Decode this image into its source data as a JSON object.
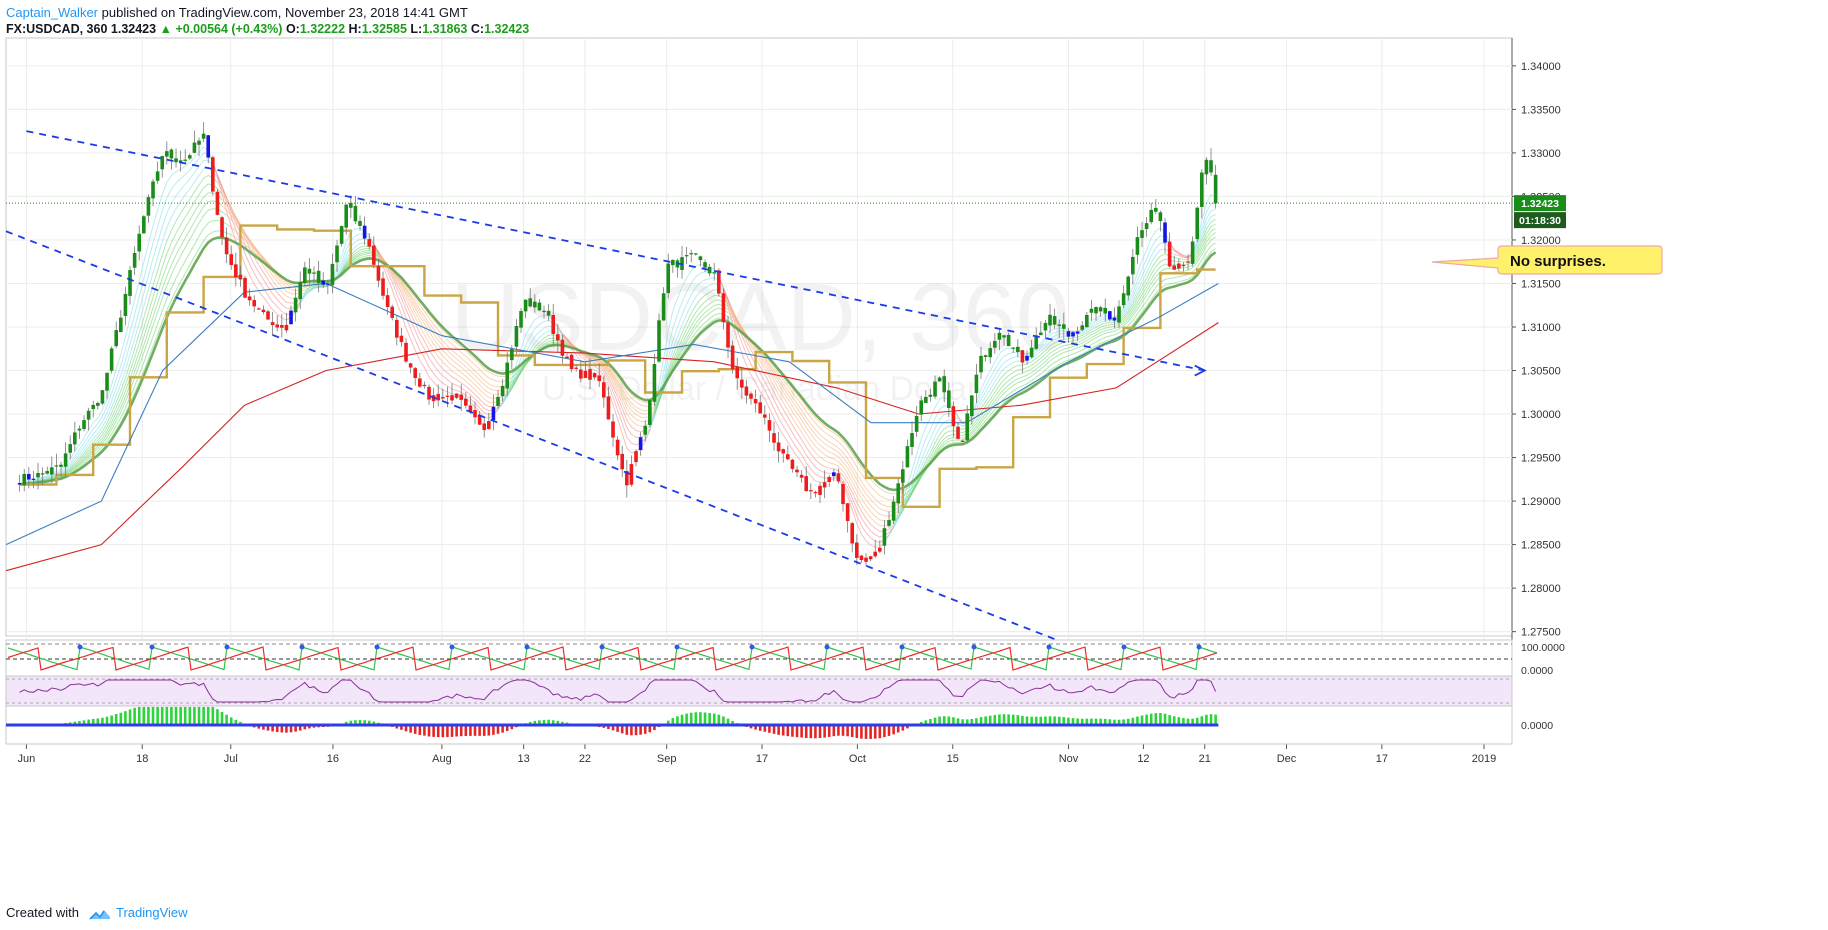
{
  "header": {
    "author": "Captain_Walker",
    "published_text": "published on TradingView.com, November 23, 2018 14:41 GMT",
    "symbol": "FX:USDCAD, 360",
    "last": "1.32423",
    "change": "+0.00564 (+0.43%)",
    "open_label": "O:",
    "open": "1.32222",
    "high_label": "H:",
    "high": "1.32585",
    "low_label": "L:",
    "low": "1.31863",
    "close_label": "C:",
    "close": "1.32423"
  },
  "colors": {
    "bull": "#1a8c1a",
    "bear": "#ee1c1c",
    "neutral": "#1414e6",
    "trendline": "#1a3be6",
    "kijun": "#c9a544",
    "ma_red": "#d62222",
    "ma_blue": "#3a7fc0",
    "callout_bg": "#fff16a",
    "price_badge": "#1a8c1a"
  },
  "chart_data": {
    "type": "candlestick",
    "symbol": "FX:USDCAD",
    "interval": "360",
    "y_ticks": [
      "1.34000",
      "1.33500",
      "1.33000",
      "1.32500",
      "1.32000",
      "1.31500",
      "1.31000",
      "1.30500",
      "1.30000",
      "1.29500",
      "1.29000",
      "1.28500",
      "1.28000",
      "1.27500"
    ],
    "ylim": [
      1.2745,
      1.3432
    ],
    "x_ticks": [
      "Jun",
      "18",
      "Jul",
      "16",
      "Aug",
      "13",
      "22",
      "Sep",
      "17",
      "Oct",
      "15",
      "Nov",
      "12",
      "21",
      "Dec",
      "17",
      "2019"
    ],
    "watermark_symbol": "USDCAD, 360",
    "watermark_desc": "U.S. Dollar / Canadian Dollar",
    "last_price_label": "1.32423",
    "countdown_label": "01:18:30",
    "price_path": [
      [
        "2018-05-31",
        1.2925
      ],
      [
        "2018-06-03",
        1.293
      ],
      [
        "2018-06-06",
        1.294
      ],
      [
        "2018-06-09",
        1.299
      ],
      [
        "2018-06-12",
        1.302
      ],
      [
        "2018-06-15",
        1.312
      ],
      [
        "2018-06-18",
        1.322
      ],
      [
        "2018-06-21",
        1.33
      ],
      [
        "2018-06-24",
        1.329
      ],
      [
        "2018-06-27",
        1.332
      ],
      [
        "2018-06-30",
        1.319
      ],
      [
        "2018-07-03",
        1.314
      ],
      [
        "2018-07-06",
        1.311
      ],
      [
        "2018-07-09",
        1.31
      ],
      [
        "2018-07-12",
        1.317
      ],
      [
        "2018-07-15",
        1.314
      ],
      [
        "2018-07-18",
        1.324
      ],
      [
        "2018-07-21",
        1.32
      ],
      [
        "2018-07-24",
        1.312
      ],
      [
        "2018-07-27",
        1.306
      ],
      [
        "2018-07-30",
        1.302
      ],
      [
        "2018-08-03",
        1.302
      ],
      [
        "2018-08-07",
        1.298
      ],
      [
        "2018-08-10",
        1.304
      ],
      [
        "2018-08-13",
        1.313
      ],
      [
        "2018-08-16",
        1.312
      ],
      [
        "2018-08-20",
        1.305
      ],
      [
        "2018-08-24",
        1.304
      ],
      [
        "2018-08-28",
        1.292
      ],
      [
        "2018-08-31",
        1.299
      ],
      [
        "2018-09-03",
        1.317
      ],
      [
        "2018-09-07",
        1.318
      ],
      [
        "2018-09-10",
        1.316
      ],
      [
        "2018-09-13",
        1.304
      ],
      [
        "2018-09-17",
        1.3
      ],
      [
        "2018-09-20",
        1.295
      ],
      [
        "2018-09-24",
        1.291
      ],
      [
        "2018-09-28",
        1.293
      ],
      [
        "2018-10-01",
        1.283
      ],
      [
        "2018-10-04",
        1.284
      ],
      [
        "2018-10-07",
        1.292
      ],
      [
        "2018-10-10",
        1.301
      ],
      [
        "2018-10-13",
        1.304
      ],
      [
        "2018-10-16",
        1.296
      ],
      [
        "2018-10-19",
        1.306
      ],
      [
        "2018-10-22",
        1.31
      ],
      [
        "2018-10-25",
        1.306
      ],
      [
        "2018-10-29",
        1.311
      ],
      [
        "2018-11-01",
        1.309
      ],
      [
        "2018-11-05",
        1.312
      ],
      [
        "2018-11-08",
        1.311
      ],
      [
        "2018-11-11",
        1.32
      ],
      [
        "2018-11-14",
        1.324
      ],
      [
        "2018-11-16",
        1.317
      ],
      [
        "2018-11-19",
        1.318
      ],
      [
        "2018-11-21",
        1.33
      ],
      [
        "2018-11-23",
        1.3242
      ]
    ],
    "trend_lines": [
      {
        "from": [
          "2018-06-01",
          1.3325
        ],
        "to": [
          "2018-11-21",
          1.305
        ]
      },
      {
        "from": [
          "2018-05-29",
          1.321
        ],
        "to": [
          "2018-11-06",
          1.272
        ]
      }
    ],
    "ma_red": [
      [
        "2018-05-29",
        1.282
      ],
      [
        "2018-06-12",
        1.285
      ],
      [
        "2018-06-24",
        1.294
      ],
      [
        "2018-07-03",
        1.301
      ],
      [
        "2018-07-15",
        1.305
      ],
      [
        "2018-08-01",
        1.3075
      ],
      [
        "2018-08-22",
        1.307
      ],
      [
        "2018-09-10",
        1.306
      ],
      [
        "2018-09-28",
        1.303
      ],
      [
        "2018-10-10",
        1.3
      ],
      [
        "2018-10-25",
        1.301
      ],
      [
        "2018-11-08",
        1.303
      ],
      [
        "2018-11-23",
        1.3105
      ]
    ],
    "ma_blue": [
      [
        "2018-05-29",
        1.285
      ],
      [
        "2018-06-12",
        1.29
      ],
      [
        "2018-06-21",
        1.305
      ],
      [
        "2018-07-03",
        1.314
      ],
      [
        "2018-07-15",
        1.315
      ],
      [
        "2018-08-01",
        1.309
      ],
      [
        "2018-08-22",
        1.306
      ],
      [
        "2018-09-07",
        1.308
      ],
      [
        "2018-09-21",
        1.306
      ],
      [
        "2018-10-03",
        1.299
      ],
      [
        "2018-10-17",
        1.299
      ],
      [
        "2018-11-01",
        1.306
      ],
      [
        "2018-11-14",
        1.311
      ],
      [
        "2018-11-23",
        1.315
      ]
    ],
    "annotation": "No surprises.",
    "subpanes": [
      {
        "name": "oscillator",
        "ticks": [
          "100.0000",
          "0.0000"
        ]
      },
      {
        "name": "rsi",
        "ticks": []
      },
      {
        "name": "histogram",
        "ticks": [
          "0.0000"
        ]
      }
    ]
  },
  "footer": {
    "created_with": "Created with",
    "brand": "TradingView"
  }
}
